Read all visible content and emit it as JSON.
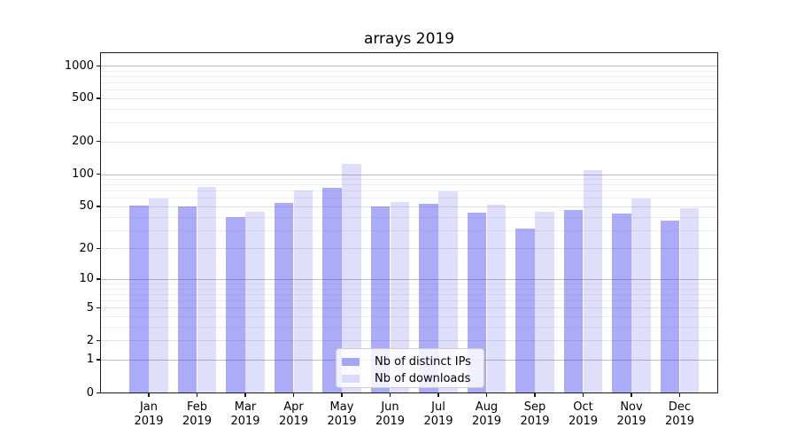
{
  "chart_data": {
    "type": "bar",
    "title": "arrays 2019",
    "categories": [
      "Jan",
      "Feb",
      "Mar",
      "Apr",
      "May",
      "Jun",
      "Jul",
      "Aug",
      "Sep",
      "Oct",
      "Nov",
      "Dec"
    ],
    "x_year_label": "2019",
    "series": [
      {
        "name": "Nb of distinct IPs",
        "color": "rgba(55,55,235,0.42)",
        "color_hex": "#ababf7",
        "values": [
          51,
          50,
          40,
          54,
          74,
          50,
          53,
          44,
          31,
          46,
          43,
          37
        ]
      },
      {
        "name": "Nb of downloads",
        "color": "rgba(55,55,235,0.16)",
        "color_hex": "#dfdffc",
        "values": [
          59,
          76,
          45,
          70,
          125,
          55,
          69,
          52,
          45,
          108,
          59,
          48
        ]
      }
    ],
    "y_ticks": [
      0,
      1,
      2,
      5,
      10,
      20,
      50,
      100,
      200,
      500,
      1000
    ],
    "y_scale": "log1p",
    "ylim": [
      0,
      1000
    ],
    "grid": true,
    "legend_position": "lower center",
    "grid_major_color": "#bdbdbd",
    "grid_minor_color": "#efefef",
    "axis_color": "#1a1a1a"
  }
}
